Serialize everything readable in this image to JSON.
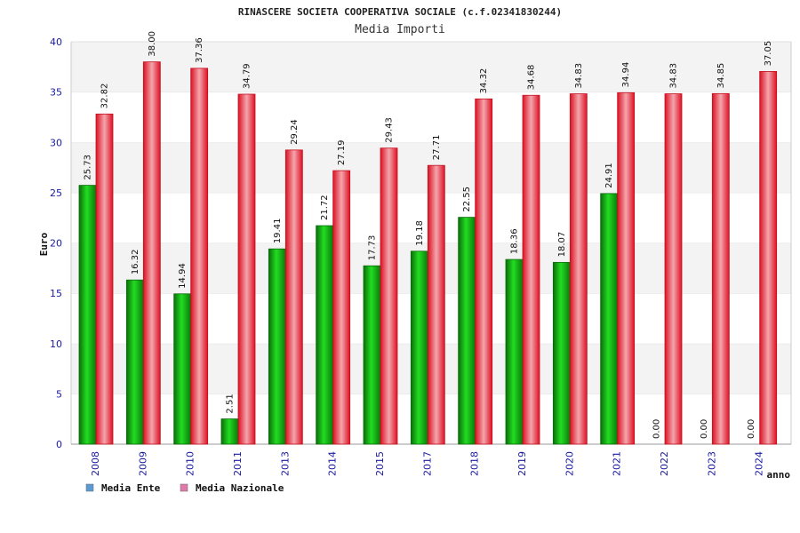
{
  "chart_data": {
    "type": "bar",
    "title": "RINASCERE SOCIETA COOPERATIVA SOCIALE (c.f.02341830244)",
    "subtitle": "Media Importi",
    "ylabel": "Euro",
    "xlabel": "anno",
    "ylim": [
      0,
      40
    ],
    "yticks": [
      0,
      5,
      10,
      15,
      20,
      25,
      30,
      35,
      40
    ],
    "ytick_labels": [
      "0",
      "5",
      "10",
      "15",
      "20",
      "25",
      "30",
      "35",
      "40"
    ],
    "grid": "horizontal bands",
    "legend_position": "bottom-left",
    "categories": [
      "2008",
      "2009",
      "2010",
      "2011",
      "2013",
      "2014",
      "2015",
      "2017",
      "2018",
      "2019",
      "2020",
      "2021",
      "2022",
      "2023",
      "2024"
    ],
    "series": [
      {
        "name": "Media Ente",
        "legend_color": "#5b9bd5",
        "bar_color": "#11aa11",
        "values": [
          25.73,
          16.32,
          14.94,
          2.51,
          19.41,
          21.72,
          17.73,
          19.18,
          22.55,
          18.36,
          18.07,
          24.91,
          0.0,
          0.0,
          0.0
        ],
        "labels": [
          "25.73",
          "16.32",
          "14.94",
          "2.51",
          "19.41",
          "21.72",
          "17.73",
          "19.18",
          "22.55",
          "18.36",
          "18.07",
          "24.91",
          "0.00",
          "0.00",
          "0.00"
        ]
      },
      {
        "name": "Media Nazionale",
        "legend_color": "#e07aa8",
        "bar_color": "#ee2233",
        "values": [
          32.82,
          38.0,
          37.36,
          34.79,
          29.24,
          27.19,
          29.43,
          27.71,
          34.32,
          34.68,
          34.83,
          34.94,
          34.83,
          34.85,
          37.05
        ],
        "labels": [
          "32.82",
          "38.00",
          "37.36",
          "34.79",
          "29.24",
          "27.19",
          "29.43",
          "27.71",
          "34.32",
          "34.68",
          "34.83",
          "34.94",
          "34.83",
          "34.85",
          "37.05"
        ]
      }
    ]
  }
}
